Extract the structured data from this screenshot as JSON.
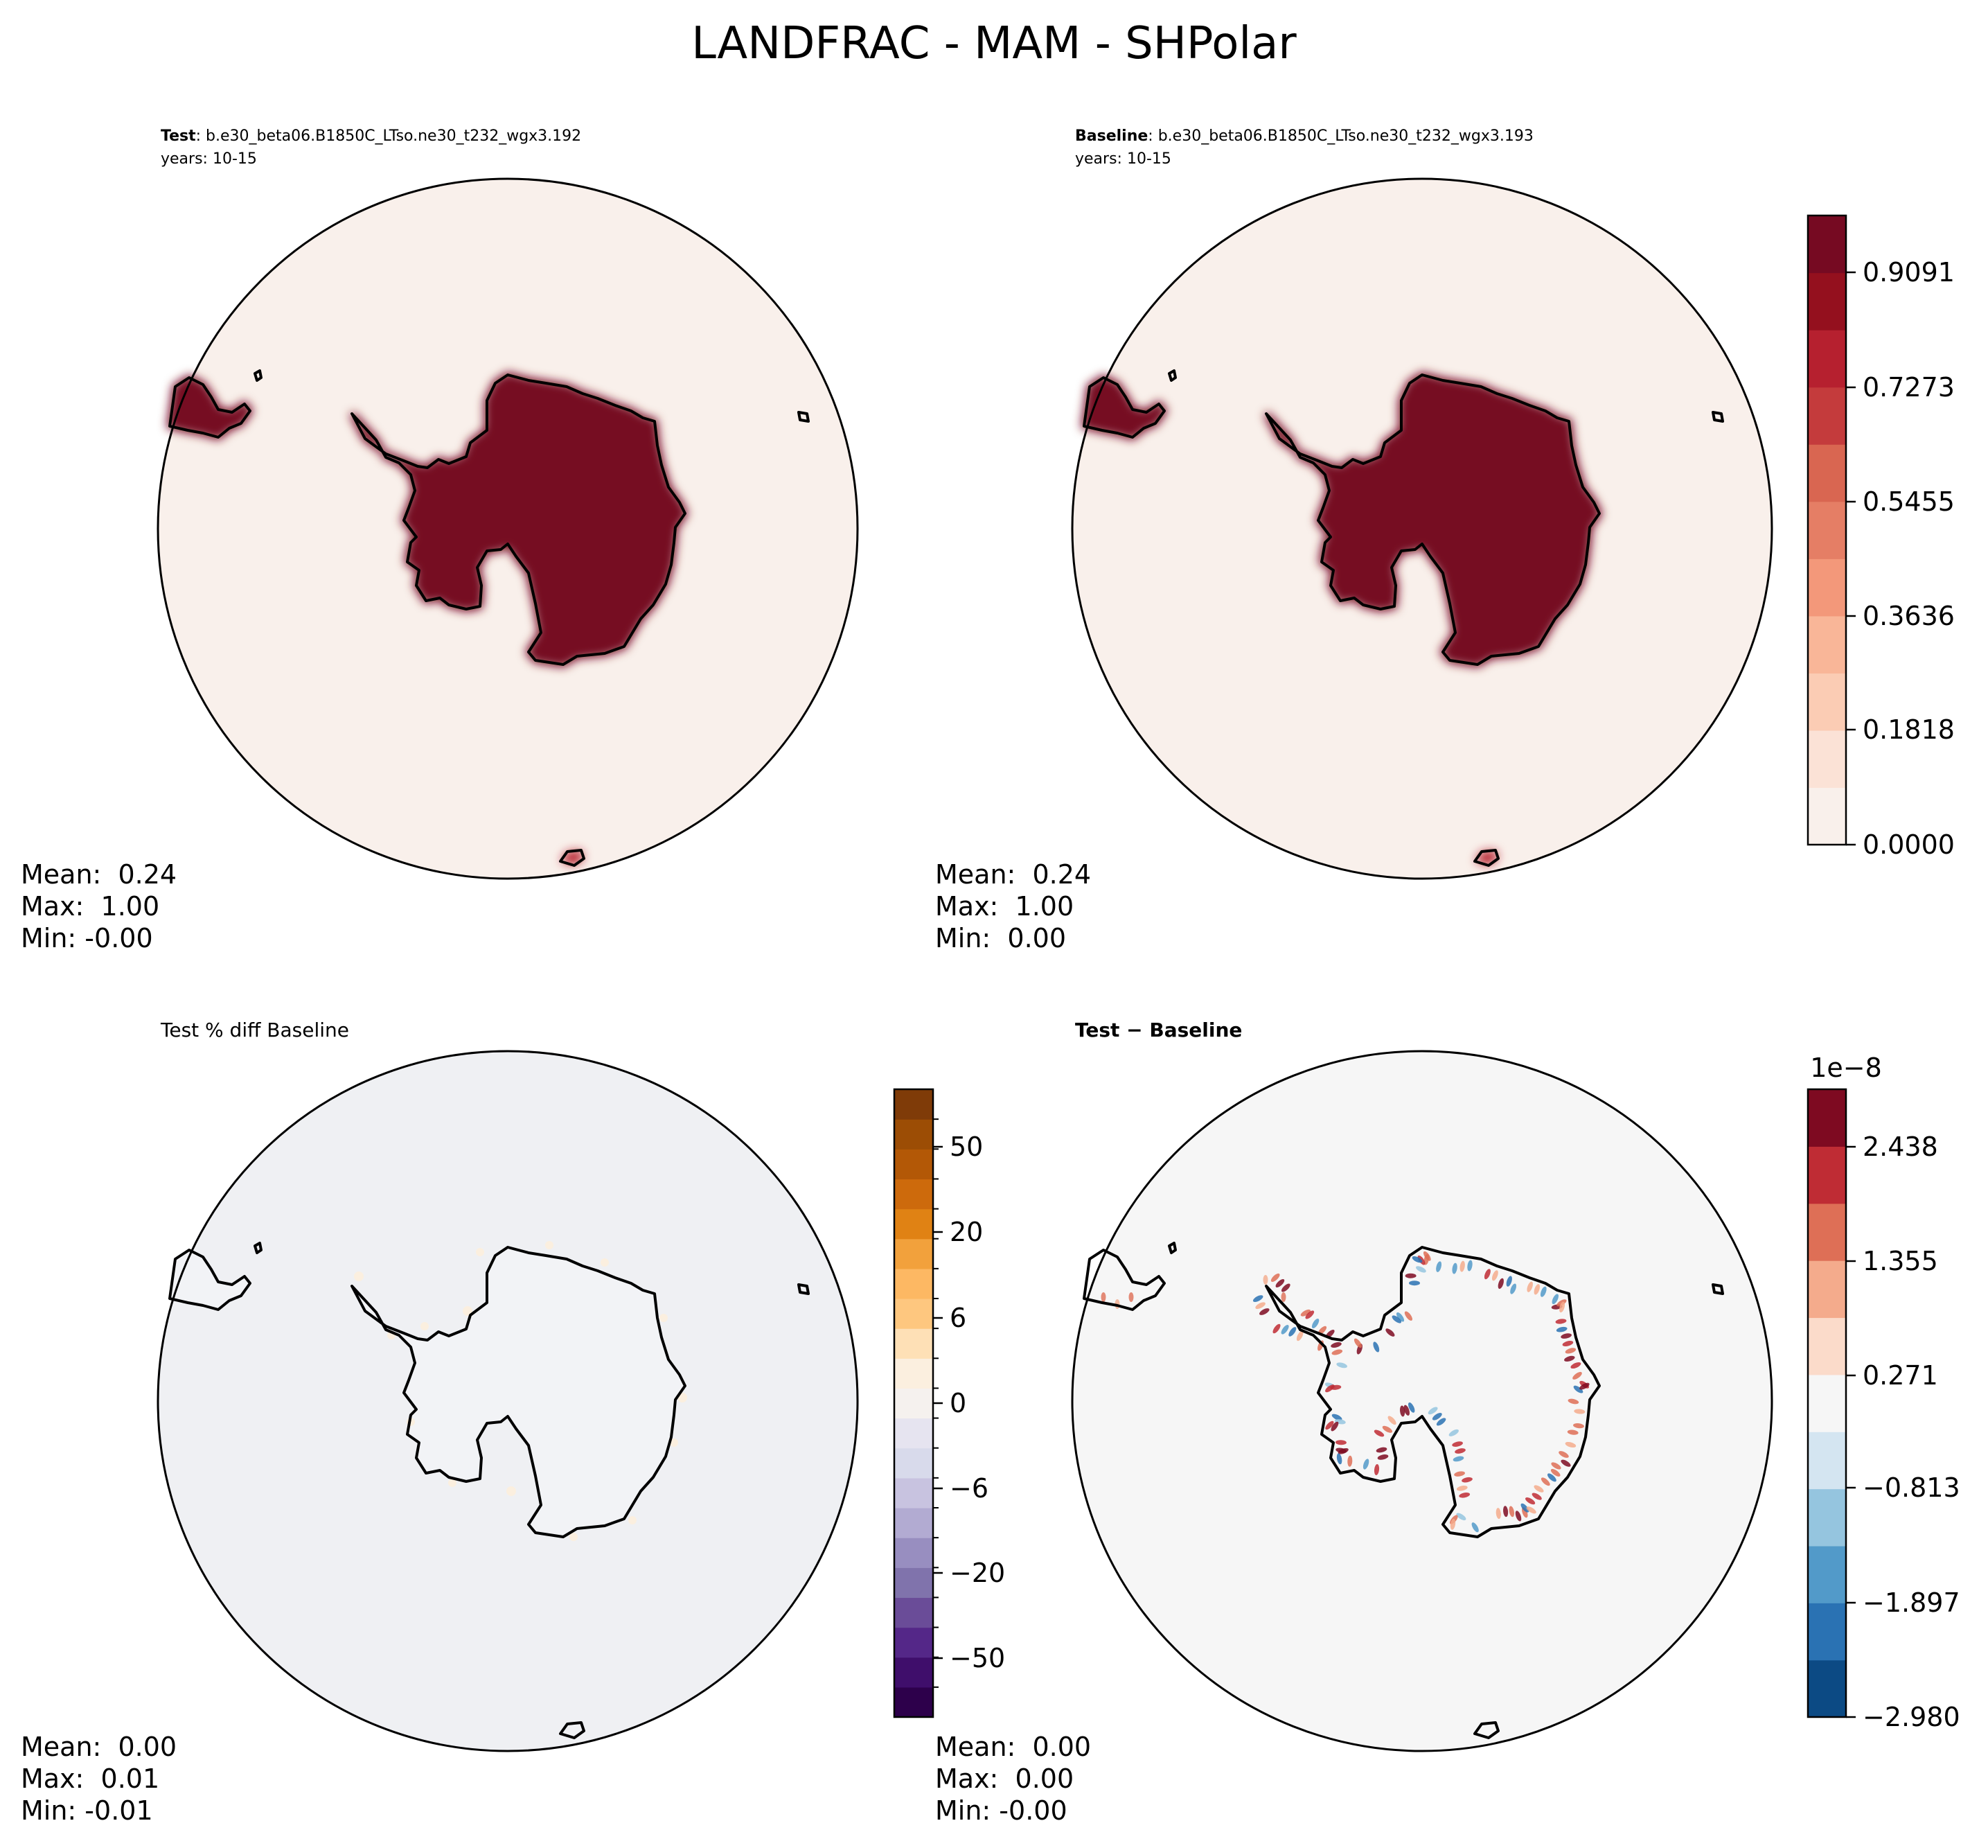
{
  "figure": {
    "title": "LANDFRAC - MAM - SHPolar"
  },
  "chart_data": [
    {
      "type": "heatmap",
      "panel": "test",
      "title_bold": "Test",
      "title_rest": ": b.e30_beta06.B1850C_LTso.ne30_t232_wgx3.192",
      "subtitle": "years: 10-15",
      "projection": "south-polar-stereographic",
      "field": "land fraction",
      "stats": {
        "mean": "Mean:  0.24",
        "max": "Max:  1.00",
        "min": "Min: -0.00"
      }
    },
    {
      "type": "heatmap",
      "panel": "baseline",
      "title_bold": "Baseline",
      "title_rest": ": b.e30_beta06.B1850C_LTso.ne30_t232_wgx3.193",
      "subtitle": "years: 10-15",
      "projection": "south-polar-stereographic",
      "field": "land fraction",
      "stats": {
        "mean": "Mean:  0.24",
        "max": "Max:  1.00",
        "min": "Min:  0.00"
      },
      "colorbar": {
        "ticks": [
          "0.9091",
          "0.7273",
          "0.5455",
          "0.3636",
          "0.1818",
          "0.0000"
        ],
        "colors": [
          "#f9f0eb",
          "#fbe2d6",
          "#fbccb4",
          "#f9b698",
          "#f3987a",
          "#e57e65",
          "#d96651",
          "#c43b3c",
          "#b6202f",
          "#94101e",
          "#760a22"
        ]
      }
    },
    {
      "type": "heatmap",
      "panel": "pct-diff",
      "title": "Test % diff Baseline",
      "projection": "south-polar-stereographic",
      "stats": {
        "mean": "Mean:  0.00",
        "max": "Max:  0.01",
        "min": "Min: -0.01"
      },
      "colorbar": {
        "ticks": [
          "50",
          "20",
          "6",
          "0",
          "−6",
          "−20",
          "−50"
        ],
        "colors": [
          "#2d004b",
          "#3f0e6b",
          "#542788",
          "#6a4c98",
          "#8073ac",
          "#988ec0",
          "#b2abd2",
          "#c8c3e0",
          "#d8daeb",
          "#e6e4f0",
          "#f5f1ee",
          "#fbefdf",
          "#fee0b6",
          "#fec77f",
          "#fdb863",
          "#f2a13c",
          "#e08214",
          "#cd6a0c",
          "#b35806",
          "#9c4d05",
          "#7f3b08"
        ]
      }
    },
    {
      "type": "heatmap",
      "panel": "abs-diff",
      "title": "Test − Baseline",
      "projection": "south-polar-stereographic",
      "stats": {
        "mean": "Mean:  0.00",
        "max": "Max:  0.00",
        "min": "Min: -0.00"
      },
      "colorbar": {
        "offset_label": "1e−8",
        "ticks": [
          "2.438",
          "1.355",
          "0.271",
          "−0.813",
          "−1.897",
          "−2.980"
        ],
        "colors": [
          "#0c4a84",
          "#2a72b3",
          "#529ac9",
          "#95c5df",
          "#d4e5f1",
          "#f6f6f6",
          "#fbdbca",
          "#f4ab8c",
          "#de6f56",
          "#bf2c34",
          "#7e0a21"
        ]
      }
    }
  ]
}
